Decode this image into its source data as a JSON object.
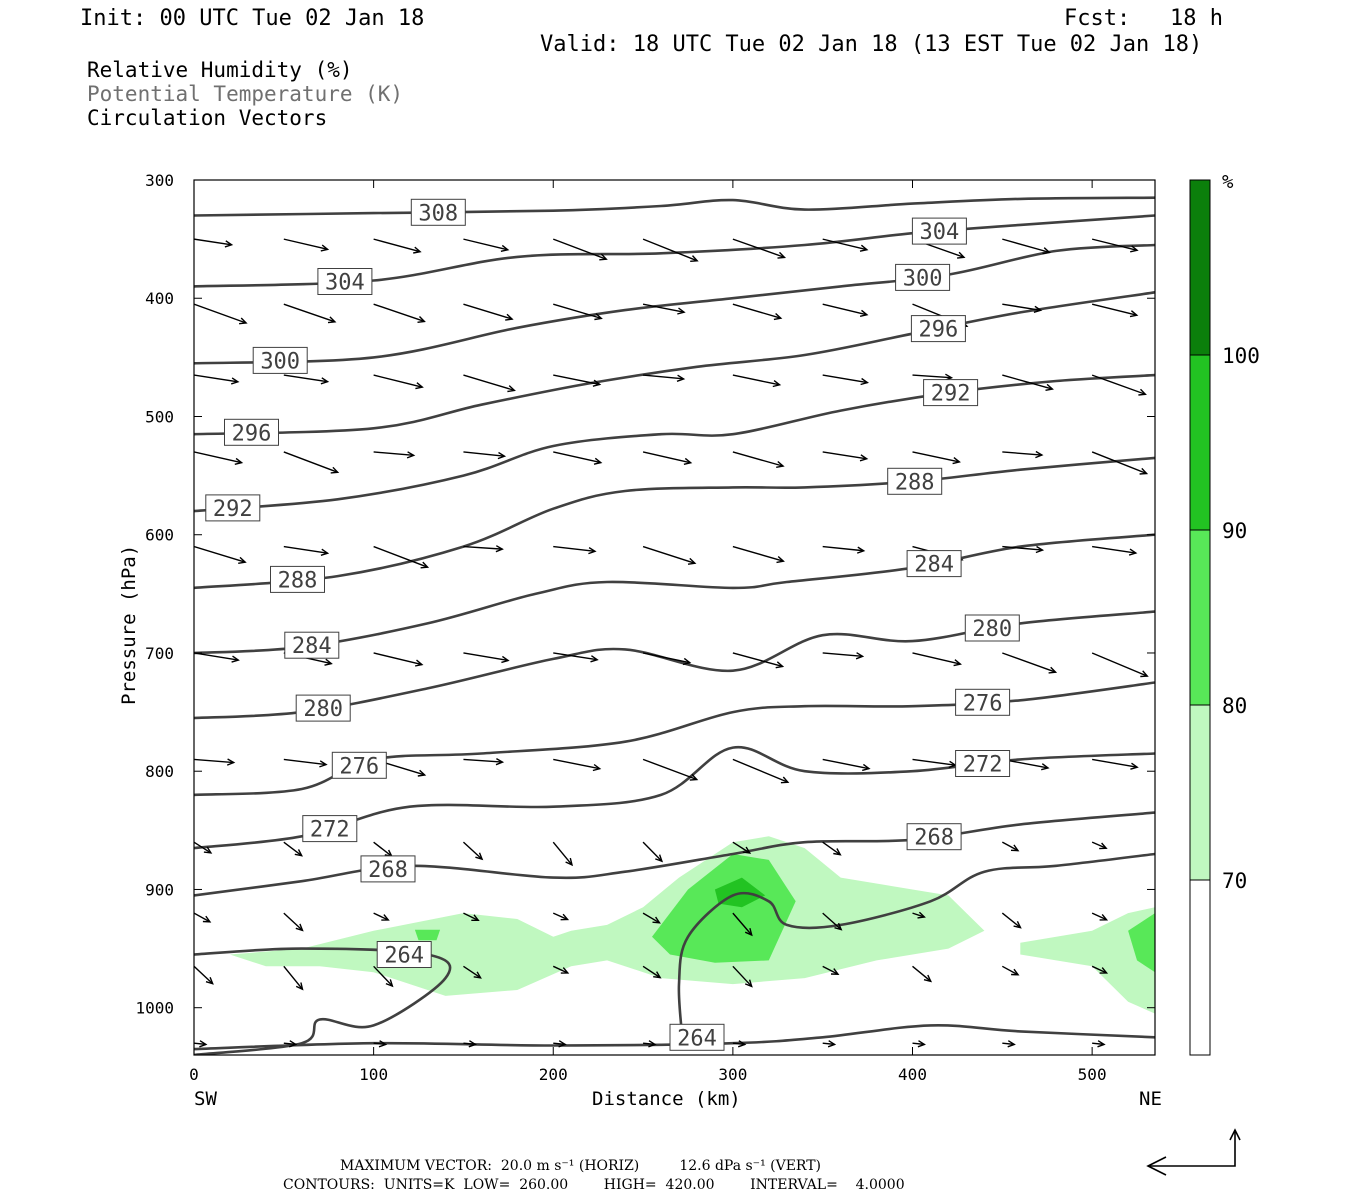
{
  "header": {
    "init": "Init: 00 UTC Tue 02 Jan 18",
    "fcst_label": "Fcst:",
    "fcst_value": "18 h",
    "valid": "Valid: 18 UTC Tue 02 Jan 18 (13 EST Tue 02 Jan 18)"
  },
  "legend": {
    "line1": "Relative Humidity (%)",
    "line2": "Potential Temperature (K)",
    "line3": "Circulation Vectors"
  },
  "footer": {
    "line1": "MAXIMUM VECTOR:  20.0 m s⁻¹ (HORIZ)         12.6 dPa s⁻¹ (VERT)",
    "line2": "CONTOURS:  UNITS=K  LOW=  260.00        HIGH=  420.00        INTERVAL=    4.0000"
  },
  "colors": {
    "rh_70_80": "#c0f8c0",
    "rh_80_90": "#58e858",
    "rh_90_100": "#22c322",
    "rh_100": "#0b7f0b",
    "theta_line": "#404040"
  },
  "chart_data": {
    "type": "contour",
    "title": "",
    "xlabel": "Distance (km)",
    "ylabel": "Pressure (hPa)",
    "x_left_end_label": "SW",
    "x_right_end_label": "NE",
    "xlim": [
      0,
      535
    ],
    "ylim": [
      1040,
      300
    ],
    "x_ticks": [
      0,
      100,
      200,
      300,
      400,
      500
    ],
    "y_ticks": [
      300,
      400,
      500,
      600,
      700,
      800,
      900,
      1000
    ],
    "colorbar": {
      "unit": "%",
      "levels": [
        70,
        80,
        90,
        100
      ],
      "level_labels": [
        "70",
        "80",
        "90",
        "100"
      ]
    },
    "theta_contours": [
      {
        "label": "308",
        "points": [
          [
            0,
            330
          ],
          [
            100,
            328
          ],
          [
            200,
            326
          ],
          [
            260,
            322
          ],
          [
            300,
            317
          ],
          [
            340,
            325
          ],
          [
            400,
            320
          ],
          [
            460,
            316
          ],
          [
            535,
            315
          ]
        ]
      },
      {
        "label": "304",
        "points": [
          [
            0,
            390
          ],
          [
            100,
            385
          ],
          [
            180,
            365
          ],
          [
            260,
            362
          ],
          [
            340,
            355
          ],
          [
            400,
            345
          ],
          [
            460,
            338
          ],
          [
            535,
            330
          ]
        ]
      },
      {
        "label": "300",
        "points": [
          [
            0,
            455
          ],
          [
            100,
            450
          ],
          [
            180,
            425
          ],
          [
            240,
            410
          ],
          [
            300,
            400
          ],
          [
            360,
            390
          ],
          [
            420,
            380
          ],
          [
            480,
            360
          ],
          [
            535,
            355
          ]
        ]
      },
      {
        "label": "296",
        "points": [
          [
            0,
            515
          ],
          [
            100,
            510
          ],
          [
            160,
            490
          ],
          [
            220,
            472
          ],
          [
            280,
            458
          ],
          [
            340,
            448
          ],
          [
            400,
            430
          ],
          [
            460,
            412
          ],
          [
            535,
            395
          ]
        ]
      },
      {
        "label": "292",
        "points": [
          [
            0,
            580
          ],
          [
            80,
            570
          ],
          [
            150,
            550
          ],
          [
            200,
            525
          ],
          [
            260,
            515
          ],
          [
            300,
            515
          ],
          [
            360,
            495
          ],
          [
            420,
            480
          ],
          [
            480,
            470
          ],
          [
            535,
            465
          ]
        ]
      },
      {
        "label": "288",
        "points": [
          [
            0,
            645
          ],
          [
            80,
            635
          ],
          [
            150,
            610
          ],
          [
            200,
            578
          ],
          [
            240,
            563
          ],
          [
            300,
            560
          ],
          [
            340,
            560
          ],
          [
            400,
            555
          ],
          [
            460,
            545
          ],
          [
            535,
            535
          ]
        ]
      },
      {
        "label": "284",
        "points": [
          [
            0,
            700
          ],
          [
            60,
            695
          ],
          [
            130,
            675
          ],
          [
            190,
            650
          ],
          [
            230,
            640
          ],
          [
            300,
            645
          ],
          [
            330,
            640
          ],
          [
            400,
            628
          ],
          [
            460,
            610
          ],
          [
            535,
            600
          ]
        ]
      },
      {
        "label": "280",
        "points": [
          [
            0,
            755
          ],
          [
            60,
            750
          ],
          [
            130,
            730
          ],
          [
            200,
            705
          ],
          [
            240,
            697
          ],
          [
            300,
            715
          ],
          [
            350,
            685
          ],
          [
            400,
            690
          ],
          [
            460,
            675
          ],
          [
            535,
            665
          ]
        ]
      },
      {
        "label": "276",
        "points": [
          [
            0,
            820
          ],
          [
            60,
            815
          ],
          [
            100,
            790
          ],
          [
            160,
            785
          ],
          [
            240,
            775
          ],
          [
            300,
            750
          ],
          [
            340,
            745
          ],
          [
            400,
            745
          ],
          [
            460,
            740
          ],
          [
            535,
            725
          ]
        ]
      },
      {
        "label": "272",
        "points": [
          [
            0,
            865
          ],
          [
            60,
            855
          ],
          [
            120,
            830
          ],
          [
            200,
            830
          ],
          [
            260,
            820
          ],
          [
            300,
            780
          ],
          [
            340,
            800
          ],
          [
            400,
            800
          ],
          [
            460,
            790
          ],
          [
            535,
            785
          ]
        ]
      },
      {
        "label": "268",
        "points": [
          [
            0,
            905
          ],
          [
            60,
            893
          ],
          [
            120,
            880
          ],
          [
            200,
            890
          ],
          [
            240,
            885
          ],
          [
            300,
            870
          ],
          [
            340,
            860
          ],
          [
            400,
            858
          ],
          [
            460,
            845
          ],
          [
            535,
            835
          ]
        ]
      },
      {
        "label": "264",
        "points": [
          [
            0,
            955
          ],
          [
            60,
            950
          ],
          [
            130,
            955
          ],
          [
            140,
            975
          ],
          [
            100,
            1015
          ],
          [
            70,
            1010
          ],
          [
            60,
            1030
          ],
          [
            0,
            1040
          ]
        ]
      },
      {
        "label": "264",
        "points": [
          [
            272,
            1028
          ],
          [
            270,
            980
          ],
          [
            275,
            940
          ],
          [
            300,
            905
          ],
          [
            320,
            910
          ],
          [
            330,
            930
          ],
          [
            360,
            930
          ],
          [
            410,
            910
          ],
          [
            440,
            885
          ],
          [
            480,
            880
          ],
          [
            535,
            870
          ]
        ]
      },
      {
        "label": "",
        "points": [
          [
            0,
            1035
          ],
          [
            100,
            1030
          ],
          [
            200,
            1032
          ],
          [
            300,
            1030
          ],
          [
            350,
            1025
          ],
          [
            410,
            1015
          ],
          [
            460,
            1020
          ],
          [
            535,
            1025
          ]
        ]
      }
    ],
    "rh_regions": [
      {
        "level": "70-80",
        "points": [
          [
            20,
            955
          ],
          [
            60,
            950
          ],
          [
            100,
            935
          ],
          [
            150,
            920
          ],
          [
            180,
            925
          ],
          [
            200,
            940
          ],
          [
            210,
            935
          ],
          [
            230,
            930
          ],
          [
            250,
            915
          ],
          [
            270,
            890
          ],
          [
            300,
            860
          ],
          [
            320,
            855
          ],
          [
            340,
            865
          ],
          [
            360,
            890
          ],
          [
            400,
            900
          ],
          [
            420,
            905
          ],
          [
            440,
            935
          ],
          [
            420,
            950
          ],
          [
            380,
            960
          ],
          [
            340,
            975
          ],
          [
            300,
            980
          ],
          [
            260,
            975
          ],
          [
            230,
            960
          ],
          [
            210,
            965
          ],
          [
            180,
            985
          ],
          [
            140,
            990
          ],
          [
            100,
            970
          ],
          [
            70,
            965
          ],
          [
            40,
            965
          ]
        ]
      },
      {
        "level": "70-80",
        "points": [
          [
            460,
            945
          ],
          [
            500,
            935
          ],
          [
            520,
            920
          ],
          [
            535,
            915
          ],
          [
            535,
            1005
          ],
          [
            520,
            995
          ],
          [
            500,
            965
          ],
          [
            480,
            960
          ],
          [
            460,
            955
          ]
        ]
      },
      {
        "level": "80-90",
        "points": [
          [
            255,
            940
          ],
          [
            275,
            900
          ],
          [
            300,
            870
          ],
          [
            320,
            875
          ],
          [
            335,
            910
          ],
          [
            320,
            960
          ],
          [
            290,
            962
          ],
          [
            265,
            955
          ]
        ]
      },
      {
        "level": "80-90",
        "points": [
          [
            520,
            935
          ],
          [
            535,
            920
          ],
          [
            535,
            970
          ],
          [
            525,
            960
          ]
        ]
      },
      {
        "level": "80-90",
        "points": [
          [
            123,
            934
          ],
          [
            137,
            934
          ],
          [
            135,
            943
          ],
          [
            125,
            943
          ]
        ]
      },
      {
        "level": "90-100",
        "points": [
          [
            290,
            900
          ],
          [
            305,
            890
          ],
          [
            318,
            905
          ],
          [
            305,
            915
          ],
          [
            292,
            912
          ]
        ]
      }
    ],
    "vectors_sample": [
      {
        "x": 0,
        "p": 400
      },
      {
        "x": 50,
        "p": 500
      },
      {
        "x": 100,
        "p": 600
      }
    ]
  }
}
